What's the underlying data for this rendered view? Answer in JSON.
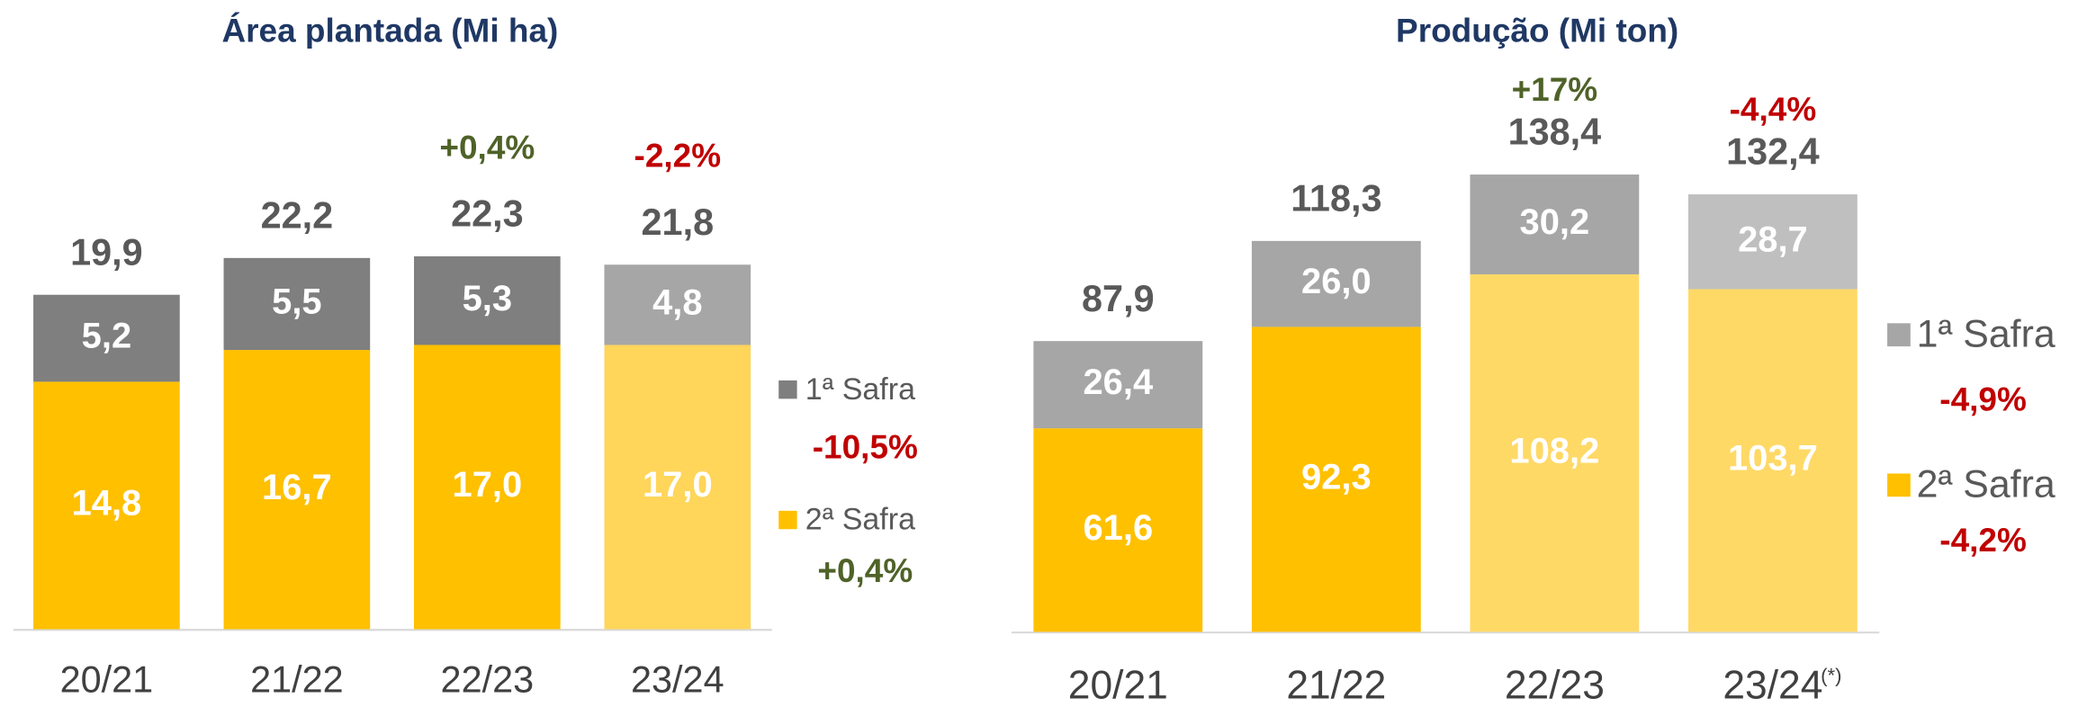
{
  "chart_data": [
    {
      "type": "stacked-bar",
      "title": "Área plantada (Mi ha)",
      "categories": [
        "20/21",
        "21/22",
        "22/23",
        "23/24"
      ],
      "series": [
        {
          "name": "2ª Safra",
          "color": "#FFC000",
          "colors": [
            "#FFC000",
            "#FFC000",
            "#FFC000",
            "#FFD55A"
          ],
          "values": [
            14.8,
            16.7,
            17.0,
            17.0
          ],
          "value_labels": [
            "14,8",
            "16,7",
            "17,0",
            "17,0"
          ],
          "change": "+0,4%"
        },
        {
          "name": "1ª Safra",
          "color": "#7F7F7F",
          "colors": [
            "#7F7F7F",
            "#7F7F7F",
            "#7F7F7F",
            "#A6A6A6"
          ],
          "values": [
            5.2,
            5.5,
            5.3,
            4.8
          ],
          "value_labels": [
            "5,2",
            "5,5",
            "5,3",
            "4,8"
          ],
          "change": "-10,5%"
        }
      ],
      "totals": [
        19.9,
        22.2,
        22.3,
        21.8
      ],
      "total_labels": [
        "19,9",
        "22,2",
        "22,3",
        "21,8"
      ],
      "change_labels": [
        null,
        null,
        "+0,4%",
        "-2,2%"
      ],
      "positive_color": "#4F6228",
      "negative_color": "#C00000"
    },
    {
      "type": "stacked-bar",
      "title": "Produção (Mi ton)",
      "categories": [
        "20/21",
        "21/22",
        "22/23",
        "23/24"
      ],
      "note": "(*)",
      "series": [
        {
          "name": "2ª Safra",
          "color": "#FFC000",
          "colors": [
            "#FFC000",
            "#FFC000",
            "#FFD966",
            "#FFD966"
          ],
          "values": [
            61.6,
            92.3,
            108.2,
            103.7
          ],
          "value_labels": [
            "61,6",
            "92,3",
            "108,2",
            "103,7"
          ],
          "change": "-4,2%"
        },
        {
          "name": "1ª Safra",
          "color": "#A6A6A6",
          "colors": [
            "#A6A6A6",
            "#A6A6A6",
            "#A6A6A6",
            "#BFBFBF"
          ],
          "values": [
            26.4,
            26.0,
            30.2,
            28.7
          ],
          "value_labels": [
            "26,4",
            "26,0",
            "30,2",
            "28,7"
          ],
          "change": "-4,9%"
        }
      ],
      "totals": [
        87.9,
        118.3,
        138.4,
        132.4
      ],
      "total_labels": [
        "87,9",
        "118,3",
        "138,4",
        "132,4"
      ],
      "change_labels": [
        null,
        null,
        "+17%",
        "-4,4%"
      ],
      "positive_color": "#4F6228",
      "negative_color": "#C00000"
    }
  ]
}
